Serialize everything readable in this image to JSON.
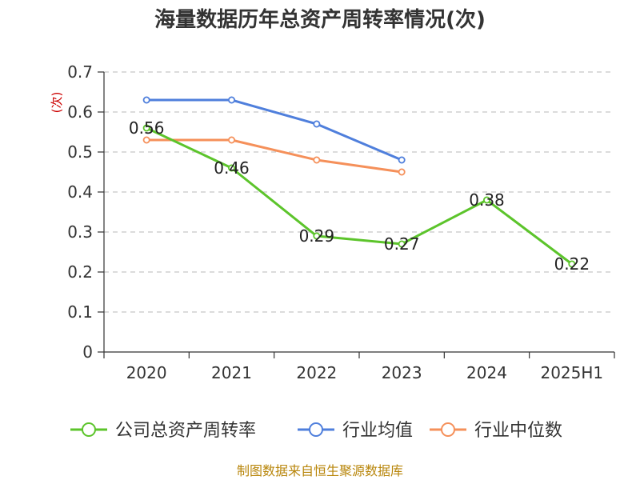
{
  "chart_data": {
    "type": "line",
    "title": "海量数据历年总资产周转率情况(次)",
    "ylabel": "(次)",
    "categories": [
      "2020",
      "2021",
      "2022",
      "2023",
      "2024",
      "2025H1"
    ],
    "ylim": [
      0,
      0.7
    ],
    "yticks": [
      0,
      0.1,
      0.2,
      0.3,
      0.4,
      0.5,
      0.6,
      0.7
    ],
    "ytick_labels": [
      "0",
      "0.1",
      "0.2",
      "0.3",
      "0.4",
      "0.5",
      "0.6",
      "0.7"
    ],
    "grid": true,
    "legend_position": "bottom",
    "series": [
      {
        "name": "公司总资产周转率",
        "color": "#5cc42b",
        "values": [
          0.56,
          0.46,
          0.29,
          0.27,
          0.38,
          0.22
        ],
        "labels": [
          "0.56",
          "0.46",
          "0.29",
          "0.27",
          "0.38",
          "0.22"
        ]
      },
      {
        "name": "行业均值",
        "color": "#4f7fdc",
        "values": [
          0.63,
          0.63,
          0.57,
          0.48,
          null,
          null
        ]
      },
      {
        "name": "行业中位数",
        "color": "#f5905a",
        "values": [
          0.53,
          0.53,
          0.48,
          0.45,
          null,
          null
        ]
      }
    ]
  },
  "source": "制图数据来自恒生聚源数据库"
}
